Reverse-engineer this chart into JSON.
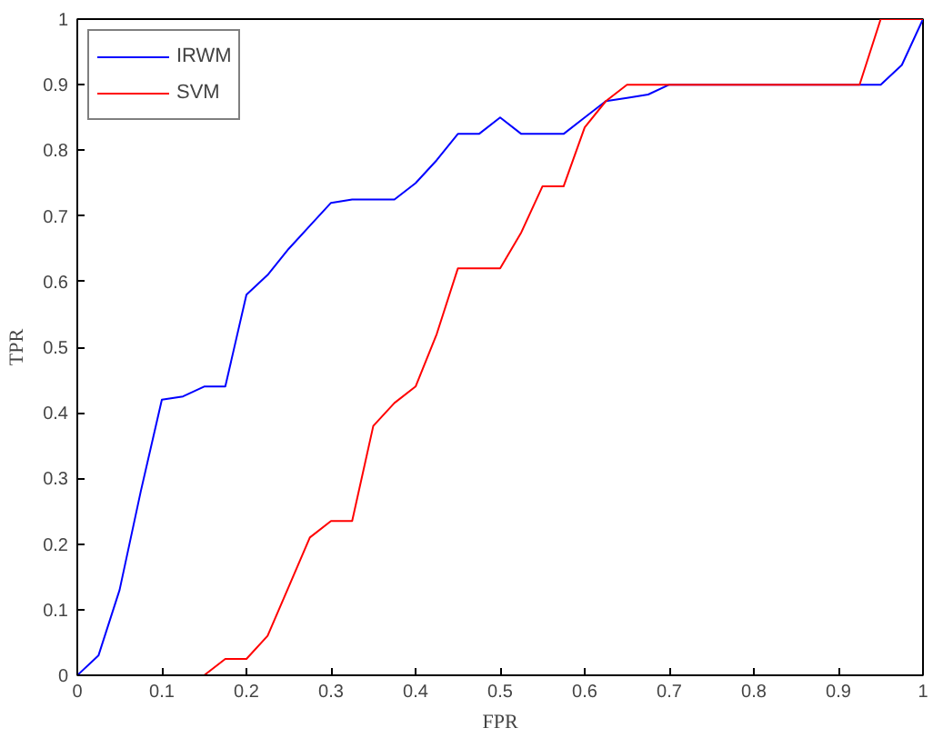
{
  "chart_data": {
    "type": "line",
    "xlabel": "FPR",
    "ylabel": "TPR",
    "xlim": [
      0,
      1
    ],
    "ylim": [
      0,
      1
    ],
    "xticks": [
      0,
      0.1,
      0.2,
      0.3,
      0.4,
      0.5,
      0.6,
      0.7,
      0.8,
      0.9,
      1
    ],
    "yticks": [
      0,
      0.1,
      0.2,
      0.3,
      0.4,
      0.5,
      0.6,
      0.7,
      0.8,
      0.9,
      1
    ],
    "grid": false,
    "legend": "top left",
    "line_style": "solid",
    "marker": "none",
    "series": [
      {
        "name": "IRWM",
        "color": "#0000ff",
        "x": [
          0,
          0.025,
          0.05,
          0.075,
          0.1,
          0.125,
          0.15,
          0.175,
          0.2,
          0.225,
          0.25,
          0.275,
          0.3,
          0.325,
          0.35,
          0.375,
          0.4,
          0.425,
          0.45,
          0.475,
          0.5,
          0.525,
          0.55,
          0.575,
          0.6,
          0.625,
          0.65,
          0.675,
          0.7,
          0.95,
          0.975,
          1
        ],
        "values": [
          0,
          0.03,
          0.13,
          0.28,
          0.42,
          0.425,
          0.44,
          0.44,
          0.58,
          0.61,
          0.65,
          0.685,
          0.72,
          0.725,
          0.725,
          0.725,
          0.75,
          0.785,
          0.825,
          0.825,
          0.85,
          0.825,
          0.825,
          0.825,
          0.85,
          0.875,
          0.88,
          0.885,
          0.9,
          0.9,
          0.93,
          1
        ]
      },
      {
        "name": "SVM",
        "color": "#ff0000",
        "x": [
          0.15,
          0.175,
          0.2,
          0.225,
          0.25,
          0.275,
          0.3,
          0.325,
          0.35,
          0.375,
          0.4,
          0.425,
          0.45,
          0.475,
          0.5,
          0.525,
          0.55,
          0.575,
          0.6,
          0.625,
          0.65,
          0.925,
          0.95,
          1
        ],
        "values": [
          0,
          0.025,
          0.025,
          0.06,
          0.135,
          0.21,
          0.235,
          0.235,
          0.38,
          0.415,
          0.44,
          0.52,
          0.62,
          0.62,
          0.62,
          0.675,
          0.745,
          0.745,
          0.835,
          0.875,
          0.9,
          0.9,
          1,
          1
        ]
      }
    ]
  }
}
